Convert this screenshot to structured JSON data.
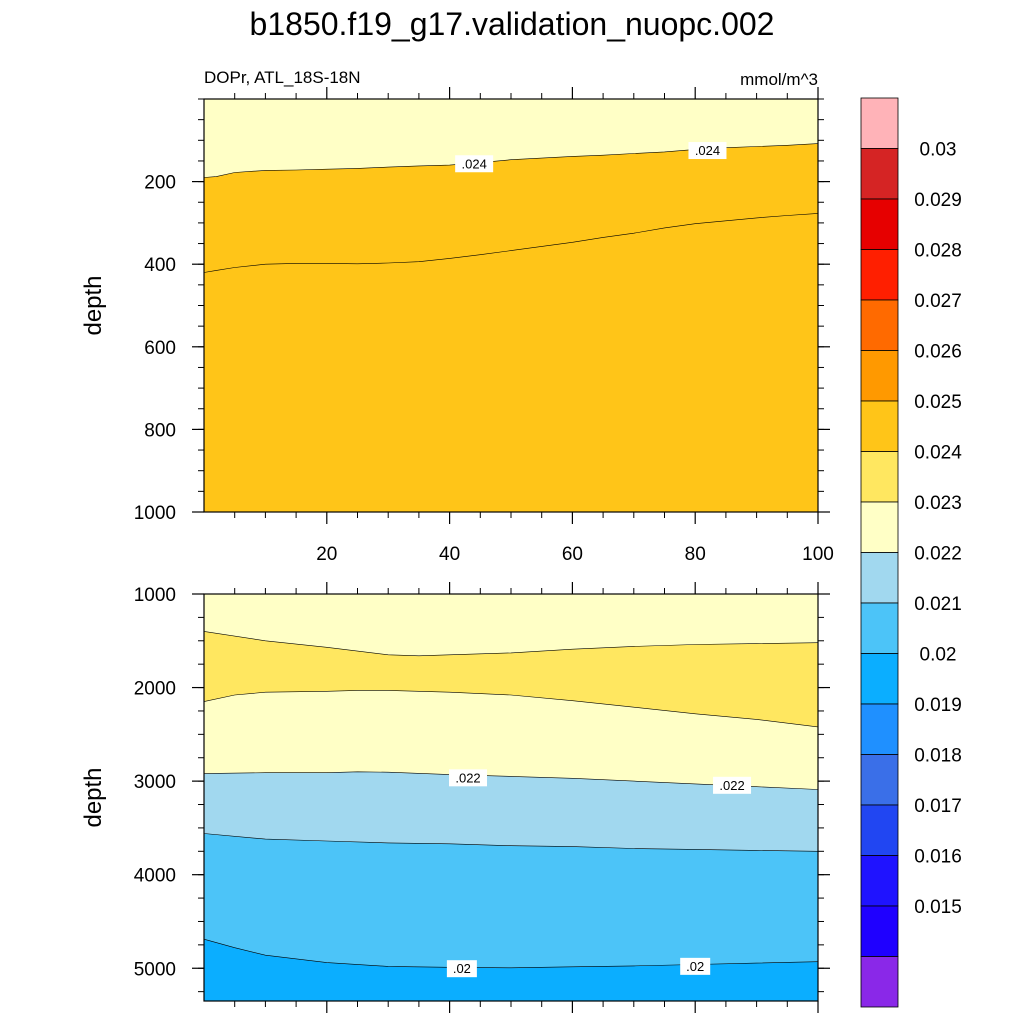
{
  "title": "b1850.f19_g17.validation_nuopc.002",
  "chart_data": {
    "type": "contour",
    "variable_label": "DOPr, ATL_18S-18N",
    "units": "mmol/m^3",
    "x_range": [
      0,
      100
    ],
    "x_ticks": [
      20,
      40,
      60,
      80,
      100
    ],
    "panels": [
      {
        "name": "upper",
        "ylabel": "depth",
        "ylim": [
          0,
          1000
        ],
        "y_ticks": [
          200,
          400,
          600,
          800,
          1000
        ],
        "base_color": "#FFFFC6",
        "regions": [
          {
            "color": "#FFE760",
            "bound": [
              [
                0,
                420
              ],
              [
                2,
                415
              ],
              [
                5,
                408
              ],
              [
                10,
                400
              ],
              [
                15,
                398
              ],
              [
                20,
                398
              ],
              [
                25,
                399
              ],
              [
                30,
                397
              ],
              [
                35,
                394
              ],
              [
                40,
                386
              ],
              [
                45,
                377
              ],
              [
                50,
                367
              ],
              [
                55,
                357
              ],
              [
                60,
                347
              ],
              [
                65,
                335
              ],
              [
                70,
                325
              ],
              [
                75,
                312
              ],
              [
                80,
                302
              ],
              [
                85,
                295
              ],
              [
                90,
                288
              ],
              [
                95,
                282
              ],
              [
                100,
                277
              ]
            ]
          },
          {
            "color": "#FFC518",
            "bound": [
              [
                0,
                190
              ],
              [
                2,
                188
              ],
              [
                5,
                178
              ],
              [
                10,
                173
              ],
              [
                15,
                172
              ],
              [
                20,
                170
              ],
              [
                25,
                168
              ],
              [
                30,
                165
              ],
              [
                35,
                162
              ],
              [
                40,
                160
              ],
              [
                45,
                154
              ],
              [
                50,
                147
              ],
              [
                55,
                143
              ],
              [
                60,
                139
              ],
              [
                65,
                136
              ],
              [
                70,
                132
              ],
              [
                75,
                128
              ],
              [
                80,
                122
              ],
              [
                85,
                118
              ],
              [
                90,
                115
              ],
              [
                95,
                112
              ],
              [
                100,
                108
              ]
            ]
          }
        ],
        "contour_labels": [
          {
            "text": ".024",
            "x": 44,
            "y": 158
          },
          {
            "text": ".024",
            "x": 82,
            "y": 126
          }
        ]
      },
      {
        "name": "lower",
        "ylabel": "depth",
        "ylim": [
          1000,
          5350
        ],
        "y_ticks": [
          1000,
          2000,
          3000,
          4000,
          5000
        ],
        "base_color": "#FFFFC6",
        "regions": [
          {
            "color": "#FFE760",
            "bound": [
              [
                0,
                1400
              ],
              [
                10,
                1500
              ],
              [
                20,
                1570
              ],
              [
                30,
                1650
              ],
              [
                35,
                1660
              ],
              [
                40,
                1650
              ],
              [
                50,
                1630
              ],
              [
                60,
                1590
              ],
              [
                70,
                1560
              ],
              [
                80,
                1540
              ],
              [
                90,
                1530
              ],
              [
                100,
                1520
              ]
            ]
          },
          {
            "color": "#FFFFC6",
            "bound": [
              [
                0,
                2150
              ],
              [
                5,
                2080
              ],
              [
                10,
                2050
              ],
              [
                20,
                2040
              ],
              [
                25,
                2030
              ],
              [
                30,
                2030
              ],
              [
                40,
                2050
              ],
              [
                50,
                2080
              ],
              [
                60,
                2140
              ],
              [
                70,
                2210
              ],
              [
                80,
                2280
              ],
              [
                90,
                2340
              ],
              [
                100,
                2420
              ]
            ]
          },
          {
            "color": "#A1D8EF",
            "bound": [
              [
                0,
                2920
              ],
              [
                10,
                2910
              ],
              [
                20,
                2910
              ],
              [
                25,
                2900
              ],
              [
                30,
                2905
              ],
              [
                40,
                2930
              ],
              [
                50,
                2950
              ],
              [
                60,
                2970
              ],
              [
                70,
                3000
              ],
              [
                80,
                3030
              ],
              [
                90,
                3060
              ],
              [
                100,
                3090
              ]
            ]
          },
          {
            "color": "#4CC4F8",
            "bound": [
              [
                0,
                3560
              ],
              [
                10,
                3620
              ],
              [
                20,
                3640
              ],
              [
                30,
                3660
              ],
              [
                40,
                3670
              ],
              [
                50,
                3690
              ],
              [
                60,
                3700
              ],
              [
                70,
                3720
              ],
              [
                80,
                3730
              ],
              [
                90,
                3740
              ],
              [
                100,
                3750
              ]
            ]
          },
          {
            "color": "#0BAEFF",
            "bound": [
              [
                0,
                4690
              ],
              [
                5,
                4780
              ],
              [
                10,
                4860
              ],
              [
                20,
                4940
              ],
              [
                30,
                4980
              ],
              [
                40,
                4990
              ],
              [
                50,
                4995
              ],
              [
                60,
                4985
              ],
              [
                70,
                4975
              ],
              [
                80,
                4960
              ],
              [
                90,
                4945
              ],
              [
                100,
                4930
              ]
            ]
          }
        ],
        "contour_labels": [
          {
            "text": ".022",
            "x": 43,
            "y": 2970
          },
          {
            "text": ".022",
            "x": 86,
            "y": 3050
          },
          {
            "text": ".02",
            "x": 42,
            "y": 5010
          },
          {
            "text": ".02",
            "x": 80,
            "y": 4985
          }
        ]
      }
    ],
    "colorbar": {
      "labels": [
        "0.03",
        "0.029",
        "0.028",
        "0.027",
        "0.026",
        "0.025",
        "0.024",
        "0.023",
        "0.022",
        "0.021",
        "0.02",
        "0.019",
        "0.018",
        "0.017",
        "0.016",
        "0.015"
      ],
      "colors_top_to_bottom": [
        "#FFB3B8",
        "#D52424",
        "#E60000",
        "#FF1F00",
        "#FF6A00",
        "#FF9900",
        "#FFC518",
        "#FFE760",
        "#FFFFC6",
        "#A1D8EF",
        "#4CC4F8",
        "#0BAEFF",
        "#1F90FF",
        "#3A6FE8",
        "#2146F2",
        "#1F13FF",
        "#1F00FF",
        "#8A28E8"
      ]
    }
  }
}
